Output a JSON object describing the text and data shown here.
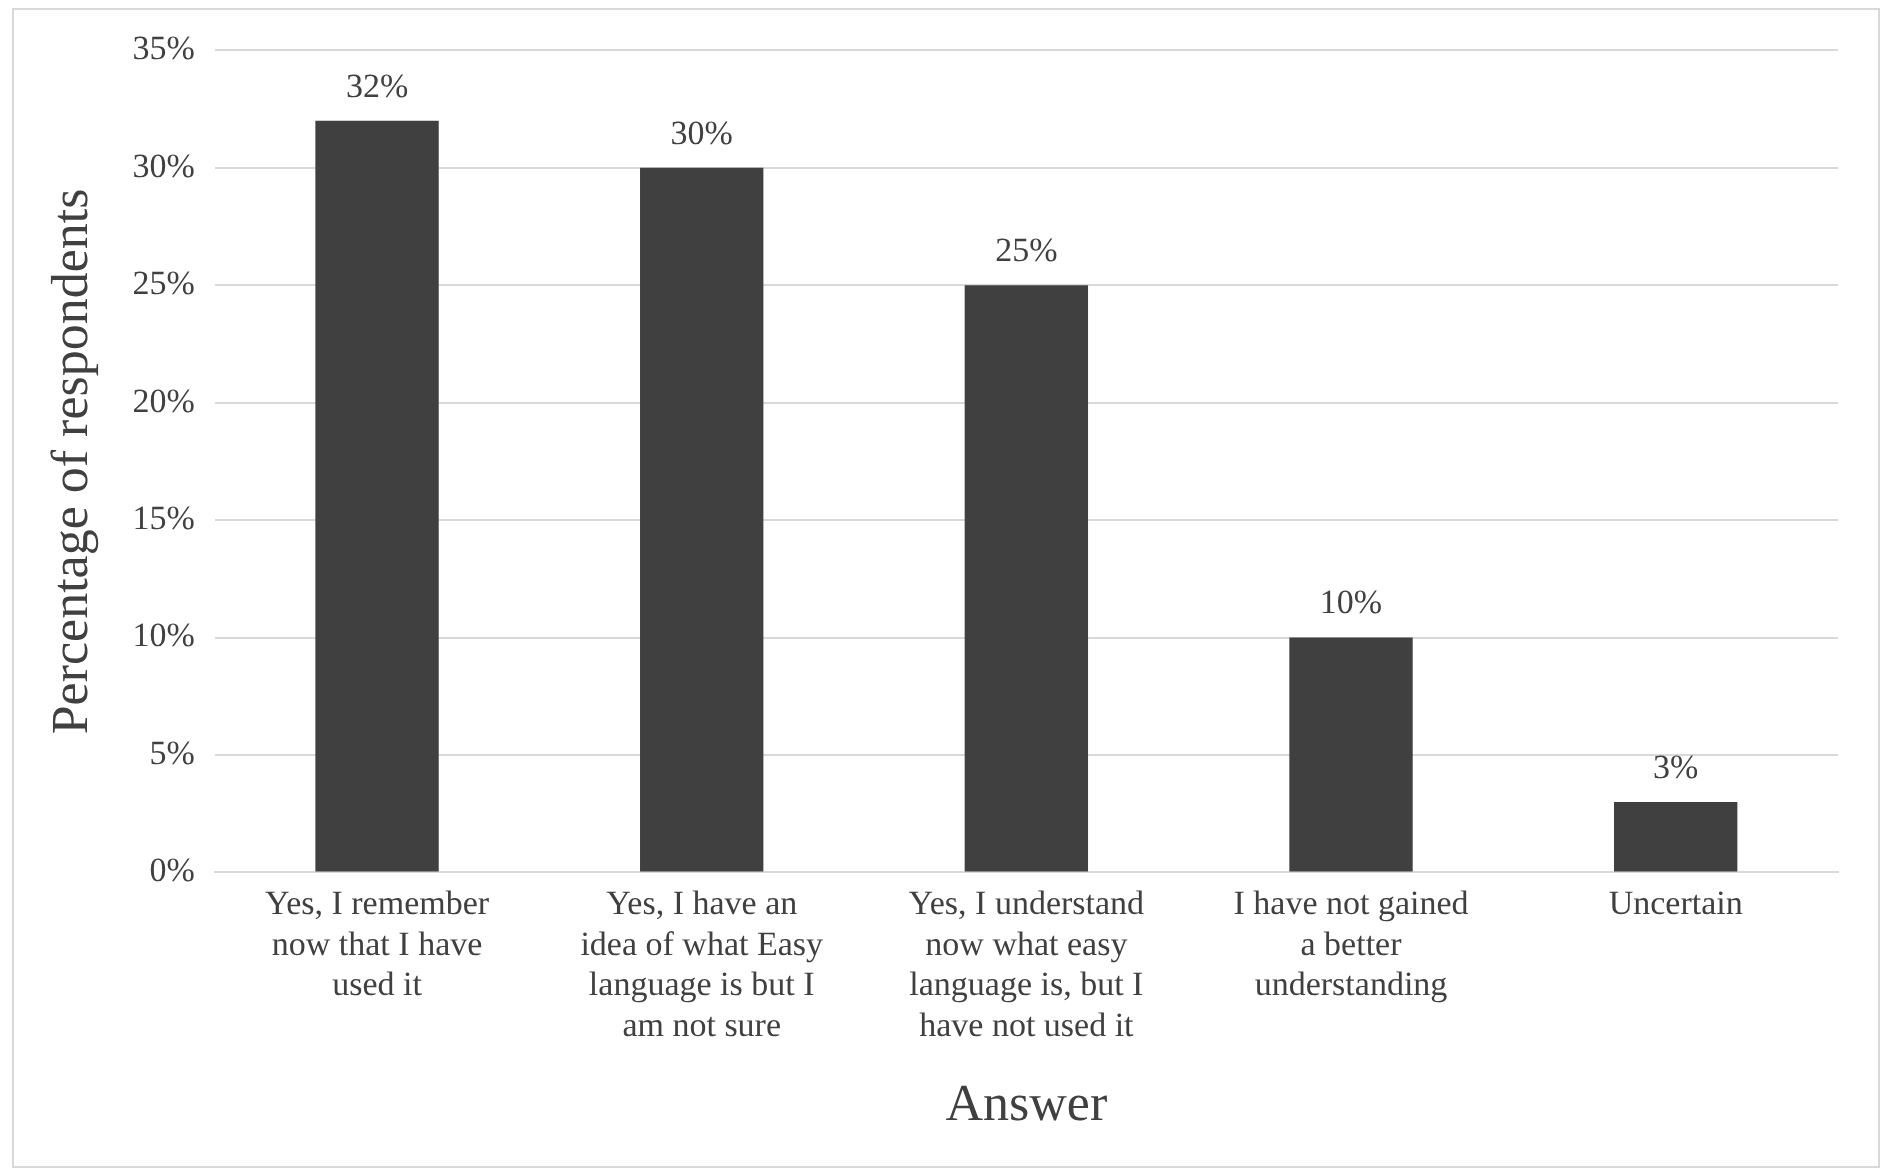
{
  "chart_data": {
    "type": "bar",
    "xlabel": "Answer",
    "ylabel": "Percentage of respondents",
    "categories": [
      "Yes, I remember now that I have used it",
      "Yes, I have an idea of what Easy language is but I am not sure",
      "Yes, I understand now what easy language is, but I have not used it",
      "I have not gained a better understanding",
      "Uncertain"
    ],
    "values": [
      32,
      30,
      25,
      10,
      3
    ],
    "value_labels": [
      "32%",
      "30%",
      "25%",
      "10%",
      "3%"
    ],
    "color": "#404040",
    "ylim": [
      0,
      35
    ],
    "yticks": [
      {
        "value": 0,
        "label": "0%"
      },
      {
        "value": 5,
        "label": "5%"
      },
      {
        "value": 10,
        "label": "10%"
      },
      {
        "value": 15,
        "label": "15%"
      },
      {
        "value": 20,
        "label": "20%"
      },
      {
        "value": 25,
        "label": "25%"
      },
      {
        "value": 30,
        "label": "30%"
      },
      {
        "value": 35,
        "label": "35%"
      }
    ],
    "grid": "y",
    "legend": false
  }
}
